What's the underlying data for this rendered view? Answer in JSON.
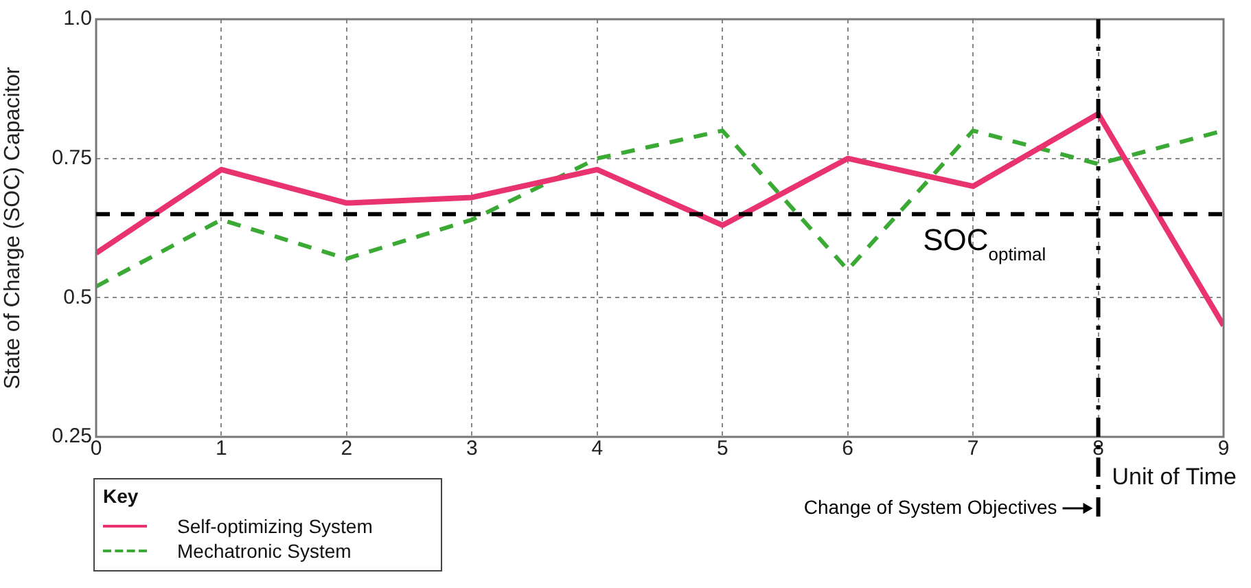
{
  "chart_data": {
    "type": "line",
    "ylabel": "State of Charge (SOC) Capacitor",
    "xlabel": "Unit of Time",
    "legend_title": "Key",
    "legend": "bottom left",
    "grid": true,
    "marker": "none",
    "x": [
      0,
      1,
      2,
      3,
      4,
      5,
      6,
      7,
      8,
      9
    ],
    "xlim": [
      0,
      9
    ],
    "xticks": [
      0,
      1,
      2,
      3,
      4,
      5,
      6,
      7,
      8,
      9
    ],
    "ylim": [
      0.25,
      1
    ],
    "yticks": [
      0.25,
      0.5,
      0.75,
      {
        "value": 1,
        "label": "1.0"
      }
    ],
    "series": [
      {
        "name": "Self-optimizing System",
        "color": "#e8336e",
        "line_style": "solid",
        "values": [
          0.58,
          0.73,
          0.67,
          0.68,
          0.73,
          0.63,
          0.75,
          0.7,
          0.83,
          0.45
        ]
      },
      {
        "name": "Mechatronic System",
        "color": "#3aaa35",
        "line_style": "dashed",
        "values": [
          0.52,
          0.64,
          0.57,
          0.64,
          0.75,
          0.8,
          0.55,
          0.8,
          0.74,
          0.8
        ]
      }
    ],
    "ref_lines": [
      {
        "axis": "y",
        "value": 0.65,
        "label": "SOC$_{optimal}$",
        "color": "#000000",
        "line_style": "dashed"
      },
      {
        "axis": "x",
        "value": 8,
        "label": "Change of System Objectives",
        "color": "#000000",
        "line_style": "dashdot"
      }
    ]
  }
}
